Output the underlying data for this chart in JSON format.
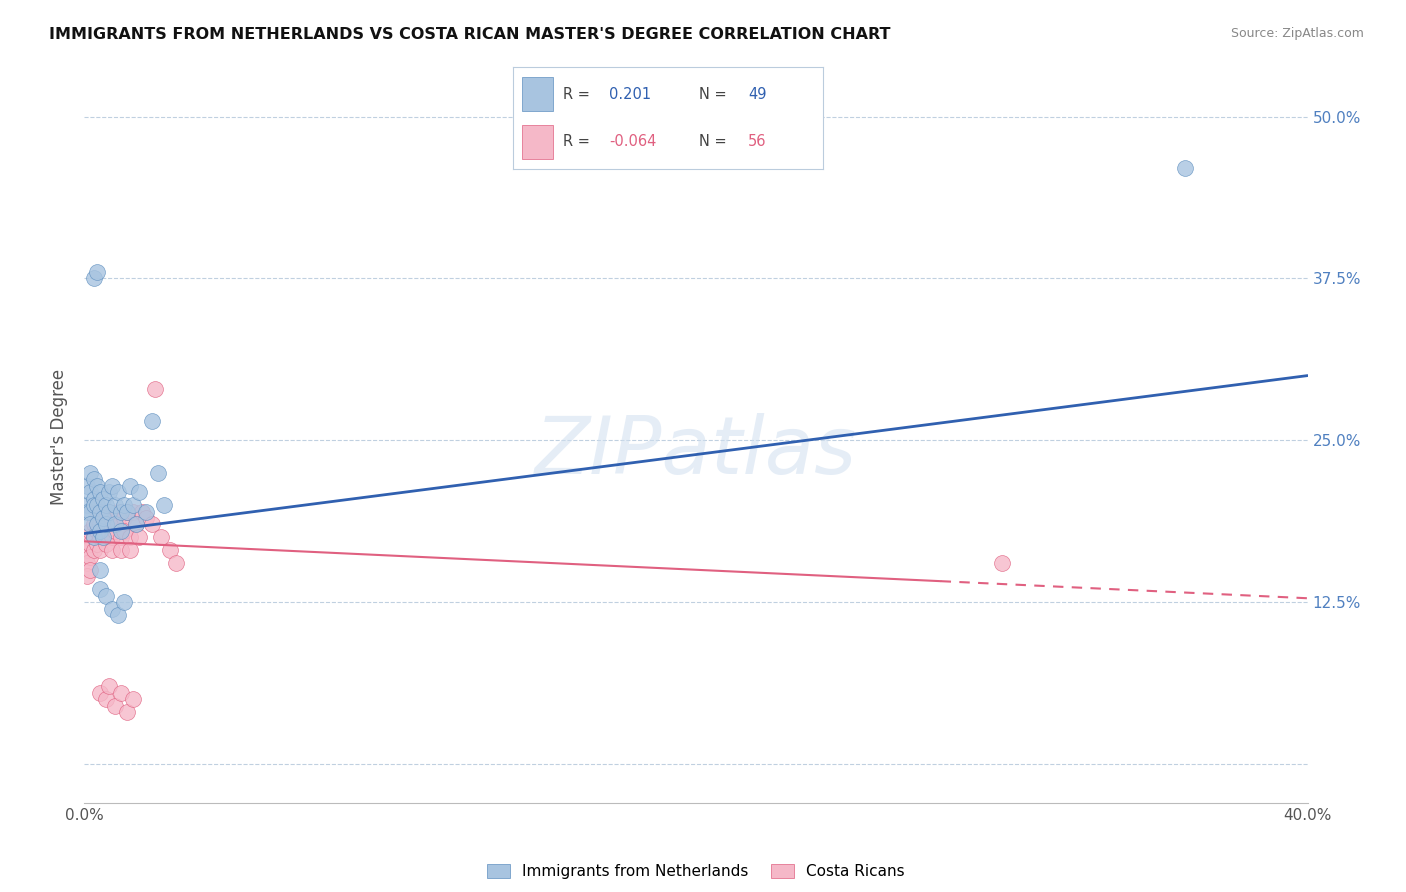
{
  "title": "IMMIGRANTS FROM NETHERLANDS VS COSTA RICAN MASTER'S DEGREE CORRELATION CHART",
  "source": "Source: ZipAtlas.com",
  "ylabel": "Master's Degree",
  "xmin": 0.0,
  "xmax": 0.4,
  "ymin": -0.03,
  "ymax": 0.535,
  "yticks": [
    0.0,
    0.125,
    0.25,
    0.375,
    0.5
  ],
  "ytick_labels": [
    "",
    "12.5%",
    "25.0%",
    "37.5%",
    "50.0%"
  ],
  "blue_label": "Immigrants from Netherlands",
  "pink_label": "Costa Ricans",
  "blue_color": "#a8c4e0",
  "pink_color": "#f5b8c8",
  "blue_edge_color": "#6090c0",
  "pink_edge_color": "#e06080",
  "blue_line_color": "#3060b0",
  "pink_line_color": "#e06080",
  "watermark": "ZIPatlas",
  "background_color": "#ffffff",
  "grid_color": "#c0d0e0",
  "blue_scatter_x": [
    0.001,
    0.001,
    0.001,
    0.002,
    0.002,
    0.002,
    0.002,
    0.003,
    0.003,
    0.003,
    0.003,
    0.004,
    0.004,
    0.004,
    0.005,
    0.005,
    0.005,
    0.006,
    0.006,
    0.006,
    0.007,
    0.007,
    0.008,
    0.008,
    0.009,
    0.01,
    0.01,
    0.011,
    0.012,
    0.012,
    0.013,
    0.014,
    0.015,
    0.016,
    0.017,
    0.018,
    0.02,
    0.022,
    0.024,
    0.026,
    0.003,
    0.004,
    0.005,
    0.007,
    0.009,
    0.011,
    0.013,
    0.36,
    0.005
  ],
  "blue_scatter_y": [
    0.2,
    0.215,
    0.195,
    0.225,
    0.21,
    0.195,
    0.185,
    0.22,
    0.205,
    0.2,
    0.175,
    0.215,
    0.2,
    0.185,
    0.21,
    0.195,
    0.18,
    0.205,
    0.19,
    0.175,
    0.2,
    0.185,
    0.21,
    0.195,
    0.215,
    0.2,
    0.185,
    0.21,
    0.195,
    0.18,
    0.2,
    0.195,
    0.215,
    0.2,
    0.185,
    0.21,
    0.195,
    0.265,
    0.225,
    0.2,
    0.375,
    0.38,
    0.135,
    0.13,
    0.12,
    0.115,
    0.125,
    0.46,
    0.15
  ],
  "pink_scatter_x": [
    0.001,
    0.001,
    0.001,
    0.001,
    0.002,
    0.002,
    0.002,
    0.002,
    0.003,
    0.003,
    0.003,
    0.004,
    0.004,
    0.004,
    0.005,
    0.005,
    0.005,
    0.006,
    0.006,
    0.006,
    0.007,
    0.007,
    0.007,
    0.008,
    0.008,
    0.009,
    0.009,
    0.01,
    0.01,
    0.011,
    0.011,
    0.012,
    0.012,
    0.013,
    0.013,
    0.014,
    0.015,
    0.015,
    0.016,
    0.017,
    0.018,
    0.019,
    0.02,
    0.022,
    0.023,
    0.025,
    0.028,
    0.03,
    0.005,
    0.007,
    0.008,
    0.01,
    0.012,
    0.014,
    0.016,
    0.3
  ],
  "pink_scatter_y": [
    0.175,
    0.165,
    0.155,
    0.145,
    0.18,
    0.17,
    0.16,
    0.15,
    0.185,
    0.175,
    0.165,
    0.19,
    0.18,
    0.17,
    0.185,
    0.175,
    0.165,
    0.195,
    0.185,
    0.175,
    0.19,
    0.18,
    0.17,
    0.195,
    0.185,
    0.175,
    0.165,
    0.19,
    0.18,
    0.195,
    0.185,
    0.175,
    0.165,
    0.19,
    0.18,
    0.195,
    0.175,
    0.165,
    0.195,
    0.185,
    0.175,
    0.195,
    0.19,
    0.185,
    0.29,
    0.175,
    0.165,
    0.155,
    0.055,
    0.05,
    0.06,
    0.045,
    0.055,
    0.04,
    0.05,
    0.155
  ],
  "blue_line_x0": 0.0,
  "blue_line_x1": 0.4,
  "blue_line_y0": 0.178,
  "blue_line_y1": 0.3,
  "pink_line_x0": 0.0,
  "pink_line_x1": 0.4,
  "pink_line_y0": 0.172,
  "pink_line_y1": 0.128
}
